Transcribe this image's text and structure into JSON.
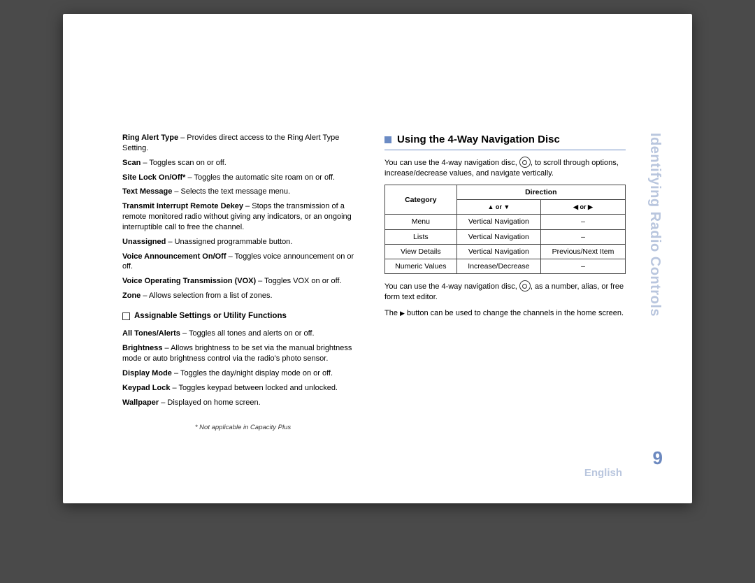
{
  "colors": {
    "page_bg": "#4a4a4a",
    "sheet_bg": "#ffffff",
    "accent": "#6b8bc4",
    "side_text": "#b9c6de",
    "pagenum": "#6b88bf",
    "border": "#444444",
    "text": "#000000"
  },
  "left": {
    "items": [
      {
        "term": "Ring Alert Type",
        "desc": " – Provides direct access to the Ring Alert Type Setting."
      },
      {
        "term": "Scan",
        "desc": " – Toggles scan on or off."
      },
      {
        "term": "Site Lock On/Off*",
        "desc": " – Toggles the automatic site roam on or off."
      },
      {
        "term": "Text Message",
        "desc": " – Selects the text message menu."
      },
      {
        "term": "Transmit Interrupt Remote Dekey",
        "desc": " – Stops the transmission of a remote monitored radio without giving any indicators, or an ongoing interruptible call to free the channel."
      },
      {
        "term": "Unassigned",
        "desc": " – Unassigned programmable button."
      },
      {
        "term": "Voice Announcement On/Off",
        "desc": " – Toggles voice announcement on or off."
      },
      {
        "term": "Voice Operating Transmission (VOX)",
        "desc": " – Toggles VOX on or off."
      },
      {
        "term": "Zone",
        "desc": " – Allows selection from a list of zones."
      }
    ],
    "subhead": "Assignable Settings or Utility Functions",
    "items2": [
      {
        "term": "All Tones/Alerts",
        "desc": " – Toggles all tones and alerts on or off."
      },
      {
        "term": "Brightness",
        "desc": " – Allows brightness to be set via the manual brightness mode or auto brightness control via the radio's photo sensor."
      },
      {
        "term": "Display Mode",
        "desc": " – Toggles the day/night display mode on or off."
      },
      {
        "term": "Keypad Lock",
        "desc": " – Toggles keypad between locked and unlocked."
      },
      {
        "term": "Wallpaper",
        "desc": " – Displayed on home screen."
      }
    ],
    "footnote": "* Not applicable in Capacity Plus"
  },
  "right": {
    "heading": "Using the 4-Way Navigation Disc",
    "p1a": "You can use the 4-way navigation disc, ",
    "p1b": ", to scroll through options, increase/decrease values, and navigate vertically.",
    "table": {
      "header_cat": "Category",
      "header_dir": "Direction",
      "col_ud": "▲ or ▼",
      "col_lr": "◀ or ▶",
      "rows": [
        {
          "cat": "Menu",
          "ud": "Vertical Navigation",
          "lr": "–"
        },
        {
          "cat": "Lists",
          "ud": "Vertical Navigation",
          "lr": "–"
        },
        {
          "cat": "View Details",
          "ud": "Vertical Navigation",
          "lr": "Previous/Next Item"
        },
        {
          "cat": "Numeric Values",
          "ud": "Increase/Decrease",
          "lr": "–"
        }
      ]
    },
    "p2a": "You can use the 4-way navigation disc, ",
    "p2b": ", as a number, alias, or free form text editor.",
    "p3a": "The ",
    "p3_tri": "▶",
    "p3b": " button can be used to change the channels in the home screen."
  },
  "side": {
    "tab": "Identifying Radio Controls",
    "pagenum": "9",
    "lang": "English"
  }
}
